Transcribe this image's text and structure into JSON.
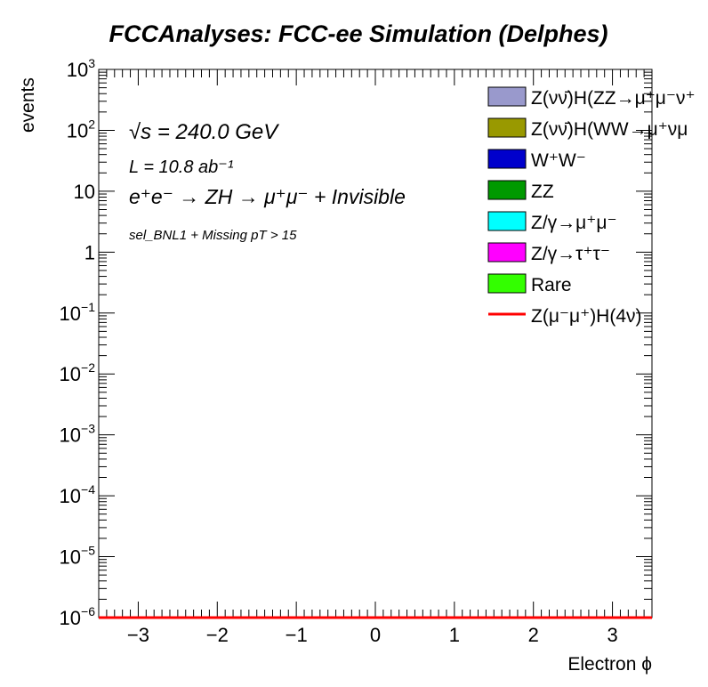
{
  "chart_data": {
    "type": "bar",
    "title": "FCCAnalyses: FCC-ee Simulation (Delphes)",
    "xlabel": "Electron ϕ",
    "ylabel": "events",
    "xlim": [
      -3.5,
      3.5
    ],
    "ylim": [
      1e-06,
      1000
    ],
    "log_y": true,
    "grid": false,
    "x_ticks": [
      "−3",
      "−2",
      "−1",
      "0",
      "1",
      "2",
      "3"
    ],
    "x_tick_values": [
      -3,
      -2,
      -1,
      0,
      1,
      2,
      3
    ],
    "y_ticks": [
      {
        "base": "10",
        "exp": "−6",
        "value": 1e-06
      },
      {
        "base": "10",
        "exp": "−5",
        "value": 1e-05
      },
      {
        "base": "10",
        "exp": "−4",
        "value": 0.0001
      },
      {
        "base": "10",
        "exp": "−3",
        "value": 0.001
      },
      {
        "base": "10",
        "exp": "−2",
        "value": 0.01
      },
      {
        "base": "10",
        "exp": "−1",
        "value": 0.1
      },
      {
        "base": "1",
        "exp": "",
        "value": 1
      },
      {
        "base": "10",
        "exp": "",
        "value": 10
      },
      {
        "base": "10",
        "exp": "2",
        "value": 100
      },
      {
        "base": "10",
        "exp": "3",
        "value": 1000
      }
    ],
    "annotations": {
      "sqrt_s": "√s = 240.0 GeV",
      "lumi": "L = 10.8 ab⁻¹",
      "process": "e⁺e⁻ → ZH → μ⁺μ⁻ + Invisible",
      "selection": "sel_BNL1 + Missing pT > 15"
    },
    "legend_position": "top-right",
    "legend": [
      {
        "label": "Z(νν̄)H(ZZ→μ⁺μ⁻ν⁺",
        "color": "#9999cc",
        "style": "fill"
      },
      {
        "label": "Z(νν̄)H(WW→μ⁺νμ",
        "color": "#999900",
        "style": "fill"
      },
      {
        "label": "W⁺W⁻",
        "color": "#0000cc",
        "style": "fill"
      },
      {
        "label": "ZZ",
        "color": "#009900",
        "style": "fill"
      },
      {
        "label": "Z/γ→μ⁺μ⁻",
        "color": "#00ffff",
        "style": "fill"
      },
      {
        "label": "Z/γ→τ⁺τ⁻",
        "color": "#ff00ff",
        "style": "fill"
      },
      {
        "label": "Rare",
        "color": "#33ff00",
        "style": "fill"
      },
      {
        "label": "Z(μ⁻μ⁺)H(4ν)",
        "color": "#ff0000",
        "style": "line"
      }
    ],
    "series": [
      {
        "name": "Z(μ⁻μ⁺)H(4ν)",
        "x": [
          -3.5,
          3.5
        ],
        "values": [
          1e-06,
          1e-06
        ]
      }
    ]
  }
}
